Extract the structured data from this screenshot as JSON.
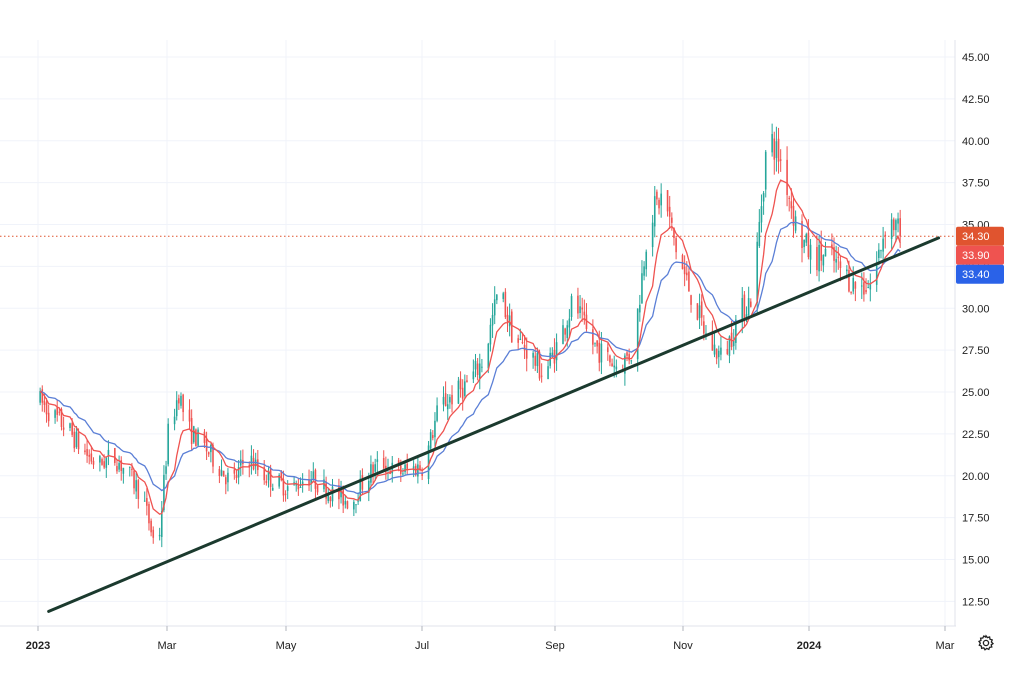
{
  "chart_data": {
    "type": "candlestick",
    "ylim": [
      11.5,
      46.2
    ],
    "y_ticks": [
      "45.00",
      "42.50",
      "40.00",
      "37.50",
      "35.00",
      "32.50",
      "30.00",
      "27.50",
      "25.00",
      "22.50",
      "20.00",
      "17.50",
      "15.00",
      "12.50"
    ],
    "x_tick_labels": [
      {
        "label": "2023",
        "bold": true
      },
      {
        "label": "Mar",
        "bold": false
      },
      {
        "label": "May",
        "bold": false
      },
      {
        "label": "Jul",
        "bold": false
      },
      {
        "label": "Sep",
        "bold": false
      },
      {
        "label": "Nov",
        "bold": false
      },
      {
        "label": "2024",
        "bold": true
      },
      {
        "label": "Mar",
        "bold": false
      }
    ],
    "price_path": [
      [
        "2023-01-01",
        24.6
      ],
      [
        "2023-01-08",
        23.6
      ],
      [
        "2023-01-15",
        22.8
      ],
      [
        "2023-01-22",
        21.5
      ],
      [
        "2023-01-29",
        20.6
      ],
      [
        "2023-02-05",
        21.2
      ],
      [
        "2023-02-12",
        20.2
      ],
      [
        "2023-02-19",
        18.8
      ],
      [
        "2023-02-26",
        15.2
      ],
      [
        "2023-03-03",
        22.5
      ],
      [
        "2023-03-08",
        25.0
      ],
      [
        "2023-03-12",
        22.8
      ],
      [
        "2023-03-19",
        21.9
      ],
      [
        "2023-03-26",
        20.7
      ],
      [
        "2023-04-02",
        19.5
      ],
      [
        "2023-04-09",
        21.2
      ],
      [
        "2023-04-16",
        20.1
      ],
      [
        "2023-04-23",
        19.6
      ],
      [
        "2023-04-30",
        19.2
      ],
      [
        "2023-05-07",
        20.0
      ],
      [
        "2023-05-14",
        19.4
      ],
      [
        "2023-05-21",
        18.8
      ],
      [
        "2023-05-28",
        18.4
      ],
      [
        "2023-06-04",
        20.0
      ],
      [
        "2023-06-11",
        20.8
      ],
      [
        "2023-06-18",
        20.2
      ],
      [
        "2023-06-25",
        20.4
      ],
      [
        "2023-07-01",
        20.6
      ],
      [
        "2023-07-08",
        24.2
      ],
      [
        "2023-07-15",
        24.8
      ],
      [
        "2023-07-22",
        25.6
      ],
      [
        "2023-07-29",
        27.0
      ],
      [
        "2023-08-05",
        31.2
      ],
      [
        "2023-08-12",
        28.2
      ],
      [
        "2023-08-19",
        27.4
      ],
      [
        "2023-08-26",
        26.0
      ],
      [
        "2023-09-02",
        28.0
      ],
      [
        "2023-09-09",
        30.5
      ],
      [
        "2023-09-16",
        28.2
      ],
      [
        "2023-09-23",
        27.2
      ],
      [
        "2023-09-30",
        26.5
      ],
      [
        "2023-10-07",
        27.5
      ],
      [
        "2023-10-14",
        35.3
      ],
      [
        "2023-10-21",
        36.8
      ],
      [
        "2023-10-28",
        33.0
      ],
      [
        "2023-11-04",
        30.5
      ],
      [
        "2023-11-11",
        28.0
      ],
      [
        "2023-11-18",
        27.0
      ],
      [
        "2023-11-25",
        29.5
      ],
      [
        "2023-12-02",
        30.8
      ],
      [
        "2023-12-09",
        40.5
      ],
      [
        "2023-12-16",
        38.5
      ],
      [
        "2023-12-23",
        34.5
      ],
      [
        "2023-12-30",
        33.0
      ],
      [
        "2024-01-06",
        33.2
      ],
      [
        "2024-01-13",
        32.2
      ],
      [
        "2024-01-20",
        31.2
      ],
      [
        "2024-01-27",
        31.5
      ],
      [
        "2024-02-03",
        35.5
      ],
      [
        "2024-02-10",
        34.3
      ]
    ],
    "series": [
      {
        "type": "candlestick",
        "up_color": "#26a69a",
        "down_color": "#ef5350"
      },
      {
        "type": "line",
        "role": "short moving average",
        "color": "#ef5350",
        "last_value": "33.90"
      },
      {
        "type": "line",
        "role": "long moving average",
        "color": "#5b7fd6",
        "last_value": "33.40"
      }
    ],
    "trendline": {
      "from": [
        "2023-01-06",
        11.9
      ],
      "to": [
        "2024-02-27",
        34.2
      ],
      "color": "#1b3a2e"
    },
    "current_price": {
      "value": "34.30",
      "line_color": "#e0542f",
      "line_style": "dotted"
    },
    "badges": [
      {
        "value": "34.30",
        "color": "#e0542f"
      },
      {
        "value": "33.90",
        "color": "#ef5350"
      },
      {
        "value": "33.40",
        "color": "#2a62e8"
      }
    ],
    "grid": true,
    "legend": "none"
  },
  "icons": {
    "settings": "gear-icon"
  }
}
